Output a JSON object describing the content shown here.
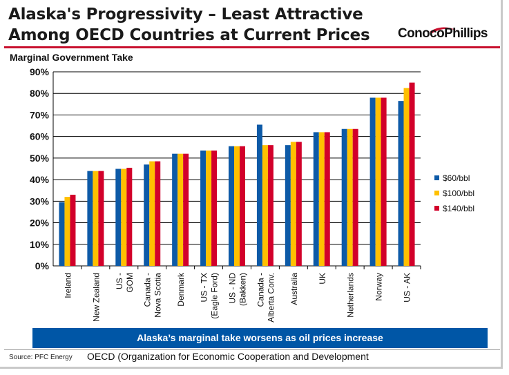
{
  "header": {
    "title_line1": "Alaska's Progressivity – Least Attractive",
    "title_line2": "Among OECD Countries at Current Prices",
    "logo_text": "ConocoPhillips"
  },
  "footer": {
    "banner": "Alaska’s marginal take worsens as oil prices increase",
    "source": "Source: PFC Energy",
    "note": "OECD (Organization for Economic Cooperation and Development"
  },
  "colors": {
    "accent_red": "#c8102e",
    "banner_blue": "#0056a6",
    "series_60": "#0d5aa7",
    "series_100": "#ffc000",
    "series_140": "#d2002a"
  },
  "chart_data": {
    "type": "bar",
    "title": "",
    "ylabel": "Marginal Government Take",
    "xlabel": "",
    "ylim": [
      0,
      90
    ],
    "yticks": [
      "0%",
      "10%",
      "20%",
      "30%",
      "40%",
      "50%",
      "60%",
      "70%",
      "80%",
      "90%"
    ],
    "grid": true,
    "legend_position": "right",
    "categories": [
      [
        "Ireland"
      ],
      [
        "New Zealand"
      ],
      [
        "US -",
        "GOM"
      ],
      [
        "Canada -",
        "Nova Scotia"
      ],
      [
        "Denmark"
      ],
      [
        "US - TX",
        "(Eagle Ford)"
      ],
      [
        "US - ND",
        "(Bakken)"
      ],
      [
        "Canada -",
        "Alberta Conv."
      ],
      [
        "Australia"
      ],
      [
        "UK"
      ],
      [
        "Netherlands"
      ],
      [
        "Norway"
      ],
      [
        "US - AK"
      ]
    ],
    "series": [
      {
        "name": "$60/bbl",
        "color": "#0d5aa7",
        "values": [
          29.5,
          44,
          45,
          47,
          52,
          53.5,
          55.5,
          65.5,
          56,
          62,
          63.5,
          78,
          76.5
        ]
      },
      {
        "name": "$100/bbl",
        "color": "#ffc000",
        "values": [
          32,
          44,
          45,
          48.5,
          52,
          53.5,
          55.5,
          56,
          57.5,
          62,
          63.5,
          78,
          82.5
        ]
      },
      {
        "name": "$140/bbl",
        "color": "#d2002a",
        "values": [
          33,
          44,
          45.5,
          48.5,
          52,
          53.5,
          55.5,
          56,
          57.5,
          62,
          63.5,
          78,
          85
        ]
      }
    ]
  }
}
